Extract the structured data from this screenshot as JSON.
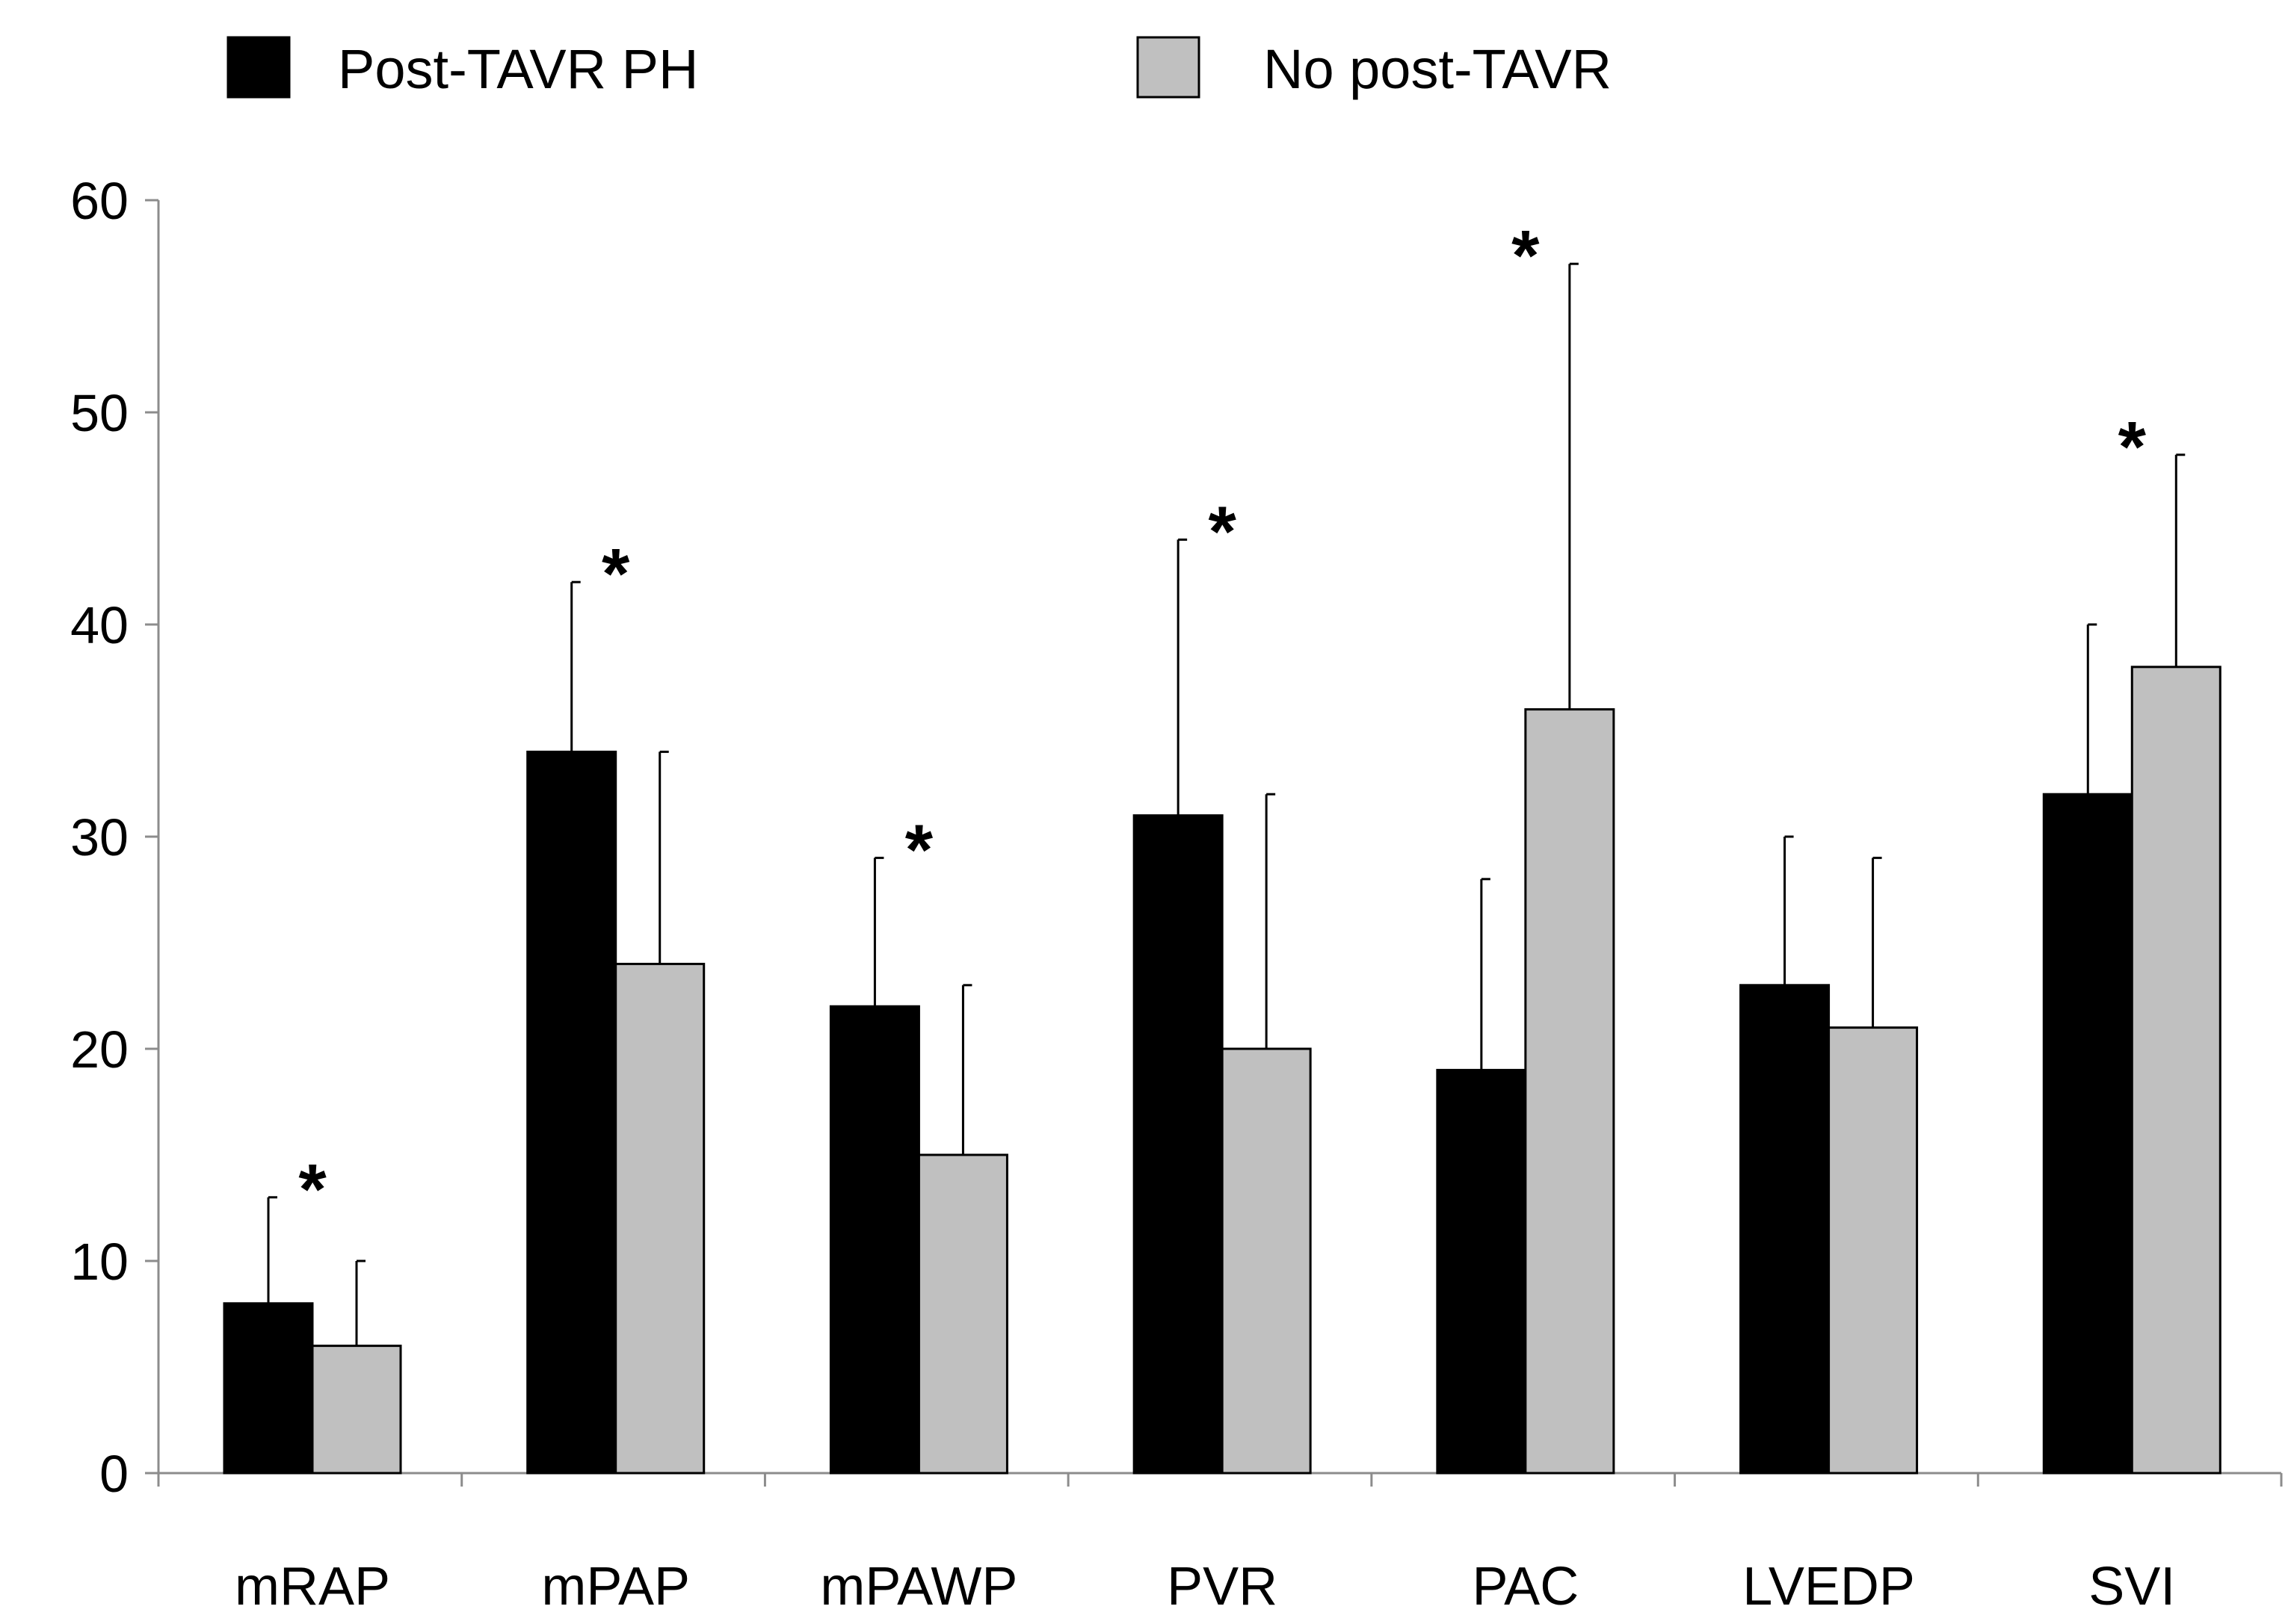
{
  "chart_data": {
    "type": "bar",
    "title": "",
    "xlabel": "",
    "ylabel": "",
    "ylim": [
      0,
      60
    ],
    "yticks": [
      0,
      10,
      20,
      30,
      40,
      50,
      60
    ],
    "grid": false,
    "legend_position": "top",
    "categories": [
      "mRAP",
      "mPAP",
      "mPAWP",
      "PVR",
      "PAC",
      "LVEDP",
      "SVI"
    ],
    "series": [
      {
        "name": "Post-TAVR PH",
        "color": "#000000",
        "values": [
          8,
          34,
          22,
          31,
          19,
          23,
          32
        ],
        "error_upper": [
          13,
          42,
          29,
          44,
          28,
          30,
          40
        ]
      },
      {
        "name": "No post-TAVR",
        "color": "#c0c0c0",
        "values": [
          6,
          24,
          15,
          20,
          36,
          21,
          38
        ],
        "error_upper": [
          10,
          34,
          23,
          32,
          57,
          29,
          48
        ]
      }
    ],
    "annotations": [
      {
        "category": "mRAP",
        "text": "*",
        "y": 13
      },
      {
        "category": "mPAP",
        "text": "*",
        "y": 42
      },
      {
        "category": "mPAWP",
        "text": "*",
        "y": 29
      },
      {
        "category": "PVR",
        "text": "*",
        "y": 44
      },
      {
        "category": "PAC",
        "text": "*",
        "y": 57
      },
      {
        "category": "SVI",
        "text": "*",
        "y": 48
      }
    ]
  }
}
